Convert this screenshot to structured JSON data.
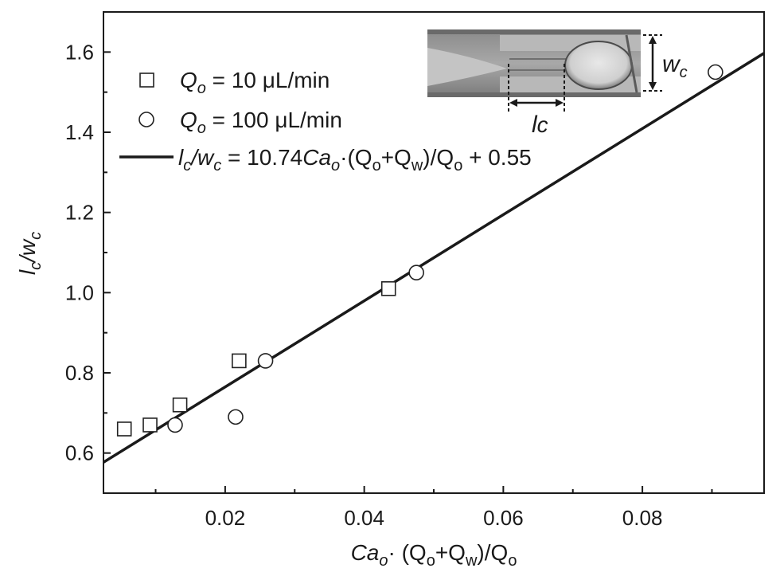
{
  "chart_data": {
    "type": "scatter",
    "xlim": [
      0.0025,
      0.0975
    ],
    "ylim": [
      0.5,
      1.7
    ],
    "x_ticks": [
      0.02,
      0.04,
      0.06,
      0.08
    ],
    "x_tick_labels": [
      "0.02",
      "0.04",
      "0.06",
      "0.08"
    ],
    "y_ticks": [
      0.6,
      0.8,
      1.0,
      1.2,
      1.4,
      1.6
    ],
    "y_tick_labels": [
      "0.6",
      "0.8",
      "1.0",
      "1.2",
      "1.4",
      "1.6"
    ],
    "grid": false,
    "legend_placement": "top-left",
    "series": [
      {
        "name": "Q_o = 10 μL/min",
        "marker": "square",
        "points": [
          {
            "x": 0.0055,
            "y": 0.66
          },
          {
            "x": 0.0092,
            "y": 0.67
          },
          {
            "x": 0.0135,
            "y": 0.72
          },
          {
            "x": 0.022,
            "y": 0.83
          },
          {
            "x": 0.0435,
            "y": 1.01
          }
        ]
      },
      {
        "name": "Q_o = 100 μL/min",
        "marker": "circle",
        "points": [
          {
            "x": 0.0128,
            "y": 0.67
          },
          {
            "x": 0.0215,
            "y": 0.69
          },
          {
            "x": 0.0258,
            "y": 0.83
          },
          {
            "x": 0.0475,
            "y": 1.05
          },
          {
            "x": 0.0905,
            "y": 1.55
          }
        ]
      }
    ],
    "fit_line": {
      "name": "l_c/w_c = 10.74Ca_o·(Q_o+Q_w)/Q_o + 0.55",
      "slope": 10.74,
      "intercept": 0.55
    }
  },
  "labels": {
    "x_axis": {
      "ca": "Ca",
      "ca_sub": "o",
      "dot": "·",
      "open": " (Q",
      "o_sub": "o",
      "plus": "+Q",
      "w_sub": "w",
      "close": ")/Q",
      "o_sub2": "o"
    },
    "y_axis": {
      "l": "l",
      "l_sub": "c",
      "slash": "/w",
      "w_sub": "c"
    },
    "legend": {
      "item1": {
        "q": "Q",
        "sub": "o",
        "rest": " = 10 μL/min"
      },
      "item2": {
        "q": "Q",
        "sub": "o",
        "rest": " = 100 μL/min"
      },
      "item3": {
        "l": "l",
        "l_sub": "c",
        "w": "/w",
        "w_sub": "c",
        "eq": " = 10.74",
        "ca": "Ca",
        "ca_sub": "o",
        "mid": "·(Q",
        "q1_sub": "o",
        "plus": "+Q",
        "q2_sub": "w",
        "close": ")/Q",
        "q3_sub": "o",
        "end": " + 0.55"
      }
    },
    "inset": {
      "w": "w",
      "w_sub": "c",
      "l": "l",
      "l_sub": "c"
    }
  },
  "colors": {
    "axis": "#1a1a1a",
    "line": "#1a1a1a",
    "marker_stroke": "#222222",
    "marker_fill": "#ffffff"
  }
}
